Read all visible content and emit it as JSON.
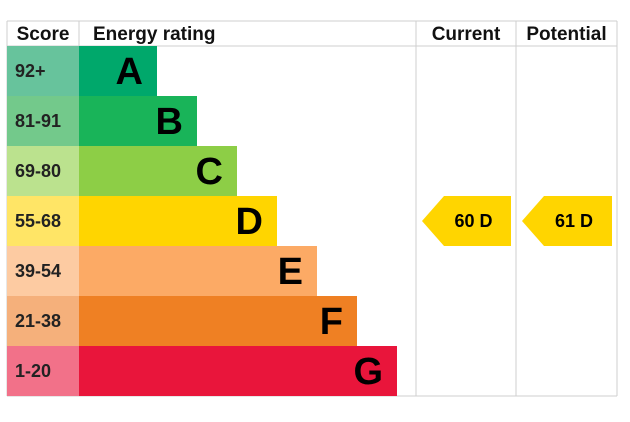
{
  "headers": {
    "score": "Score",
    "energy_rating": "Energy rating",
    "current": "Current",
    "potential": "Potential"
  },
  "chart_data": {
    "type": "bar",
    "bands": [
      {
        "range": "92+",
        "letter": "A",
        "bar_color": "#00a86b",
        "score_color": "#67c39c"
      },
      {
        "range": "81-91",
        "letter": "B",
        "bar_color": "#19b459",
        "score_color": "#73c98b"
      },
      {
        "range": "69-80",
        "letter": "C",
        "bar_color": "#8dce46",
        "score_color": "#bbe28e"
      },
      {
        "range": "55-68",
        "letter": "D",
        "bar_color": "#ffd500",
        "score_color": "#ffe566"
      },
      {
        "range": "39-54",
        "letter": "E",
        "bar_color": "#fcaa65",
        "score_color": "#fdcba2"
      },
      {
        "range": "21-38",
        "letter": "F",
        "bar_color": "#ef8023",
        "score_color": "#f5b07b"
      },
      {
        "range": "1-20",
        "letter": "G",
        "bar_color": "#e9153b",
        "score_color": "#f27189"
      }
    ],
    "current": {
      "value": 60,
      "band": "D",
      "label": "60  D",
      "color": "#ffd500"
    },
    "potential": {
      "value": 61,
      "band": "D",
      "label": "61  D",
      "color": "#ffd500"
    }
  }
}
